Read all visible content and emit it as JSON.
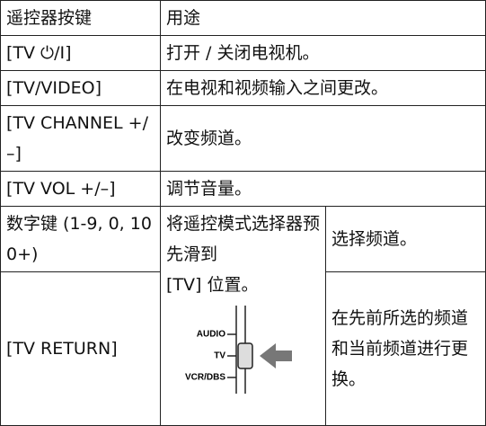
{
  "table": {
    "header": [
      "遥控器按键",
      "用途"
    ],
    "rows": [
      [
        "[TV ⏻/I]",
        "打开 / 关闭电视机。"
      ],
      [
        "[TV/VIDEO]",
        "在电视和视频输入之间更改。"
      ],
      [
        "[TV CHANNEL +/–]",
        "改变频道。"
      ],
      [
        "[TV VOL +/–]",
        "调节音量。"
      ],
      [
        "数字键 (1-9, 0, 100+)",
        [
          "将遥控模式选择器预先滑到",
          "[TV] 位置。"
        ],
        "选择频道。"
      ],
      [
        "[TV RETURN]",
        "在先前所选的频道和当前频道进行更换。"
      ]
    ],
    "diagram": {
      "labels": [
        "AUDIO",
        "TV",
        "VCR/DBS"
      ]
    }
  }
}
